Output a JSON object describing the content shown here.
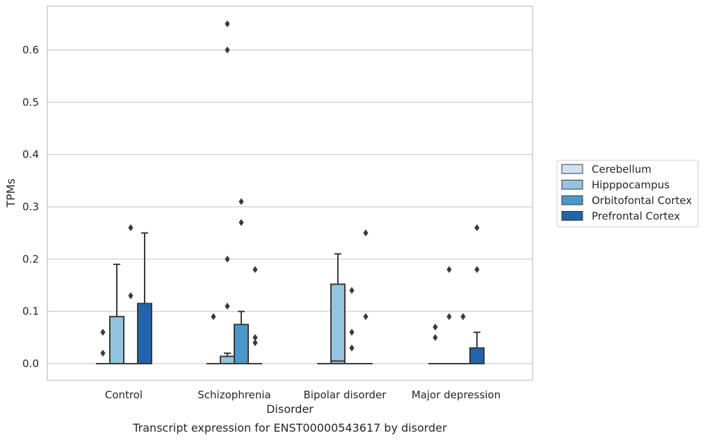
{
  "chart_data": {
    "type": "box",
    "title": "",
    "caption": "Transcript expression for ENST00000543617 by disorder",
    "xlabel": "Disorder",
    "ylabel": "TPMs",
    "ylim": [
      -0.032,
      0.68
    ],
    "yticks": [
      0.0,
      0.1,
      0.2,
      0.3,
      0.4,
      0.5,
      0.6
    ],
    "ytick_labels": [
      "0.0",
      "0.1",
      "0.2",
      "0.3",
      "0.4",
      "0.5",
      "0.6"
    ],
    "grid": "horizontal",
    "legend_position": "right",
    "categories": [
      "Control",
      "Schizophrenia",
      "Bipolar disorder",
      "Major depression"
    ],
    "series": [
      {
        "name": "Cerebellum",
        "color": "#d0e1f2",
        "boxes": [
          {
            "q1": 0,
            "median": 0,
            "q3": 0,
            "whisker_low": 0,
            "whisker_high": 0,
            "outliers": []
          },
          {
            "q1": 0,
            "median": 0,
            "q3": 0,
            "whisker_low": 0,
            "whisker_high": 0,
            "outliers": []
          },
          {
            "q1": 0,
            "median": 0,
            "q3": 0,
            "whisker_low": 0,
            "whisker_high": 0,
            "outliers": []
          },
          {
            "q1": 0,
            "median": 0,
            "q3": 0,
            "whisker_low": 0,
            "whisker_high": 0,
            "outliers": [
              0.07,
              0.05
            ]
          }
        ]
      },
      {
        "name": "Hipppocampus",
        "color": "#94c4df",
        "boxes": [
          {
            "q1": 0,
            "median": 0,
            "q3": 0.09,
            "whisker_low": 0,
            "whisker_high": 0.19,
            "outliers": []
          },
          {
            "q1": 0,
            "median": 0,
            "q3": 0.014,
            "whisker_low": 0,
            "whisker_high": 0.02,
            "outliers": [
              0.6,
              0.65,
              0.2,
              0.11
            ]
          },
          {
            "q1": 0,
            "median": 0.005,
            "q3": 0.152,
            "whisker_low": 0,
            "whisker_high": 0.21,
            "outliers": []
          },
          {
            "q1": 0,
            "median": 0,
            "q3": 0,
            "whisker_low": 0,
            "whisker_high": 0,
            "outliers": [
              0.18,
              0.09
            ]
          }
        ]
      },
      {
        "name": "Orbitofontal Cortex",
        "color": "#4a98c9",
        "boxes": [
          {
            "q1": 0,
            "median": 0,
            "q3": 0,
            "whisker_low": 0,
            "whisker_high": 0,
            "outliers": [
              0.26,
              0.13
            ]
          },
          {
            "q1": 0,
            "median": 0,
            "q3": 0.075,
            "whisker_low": 0,
            "whisker_high": 0.1,
            "outliers": [
              0.31,
              0.27
            ]
          },
          {
            "q1": 0,
            "median": 0,
            "q3": 0,
            "whisker_low": 0,
            "whisker_high": 0,
            "outliers": [
              0.14,
              0.06,
              0.03
            ]
          },
          {
            "q1": 0,
            "median": 0,
            "q3": 0,
            "whisker_low": 0,
            "whisker_high": 0,
            "outliers": [
              0.09
            ]
          }
        ]
      },
      {
        "name": "Prefrontal Cortex",
        "color": "#2164ab",
        "boxes": [
          {
            "q1": 0,
            "median": 0,
            "q3": 0.115,
            "whisker_low": 0,
            "whisker_high": 0.25,
            "outliers": []
          },
          {
            "q1": 0,
            "median": 0,
            "q3": 0,
            "whisker_low": 0,
            "whisker_high": 0,
            "outliers": [
              0.18,
              0.05,
              0.04
            ]
          },
          {
            "q1": 0,
            "median": 0,
            "q3": 0,
            "whisker_low": 0,
            "whisker_high": 0,
            "outliers": [
              0.25,
              0.09
            ]
          },
          {
            "q1": 0,
            "median": 0,
            "q3": 0.03,
            "whisker_low": 0,
            "whisker_high": 0.06,
            "outliers": [
              0.26,
              0.18
            ]
          }
        ]
      }
    ],
    "extra_points": [
      {
        "category": "Control",
        "series": "Cerebellum",
        "values": [
          0.06,
          0.02
        ]
      },
      {
        "category": "Schizophrenia",
        "series": "Cerebellum",
        "values": [
          0.09
        ]
      }
    ]
  }
}
